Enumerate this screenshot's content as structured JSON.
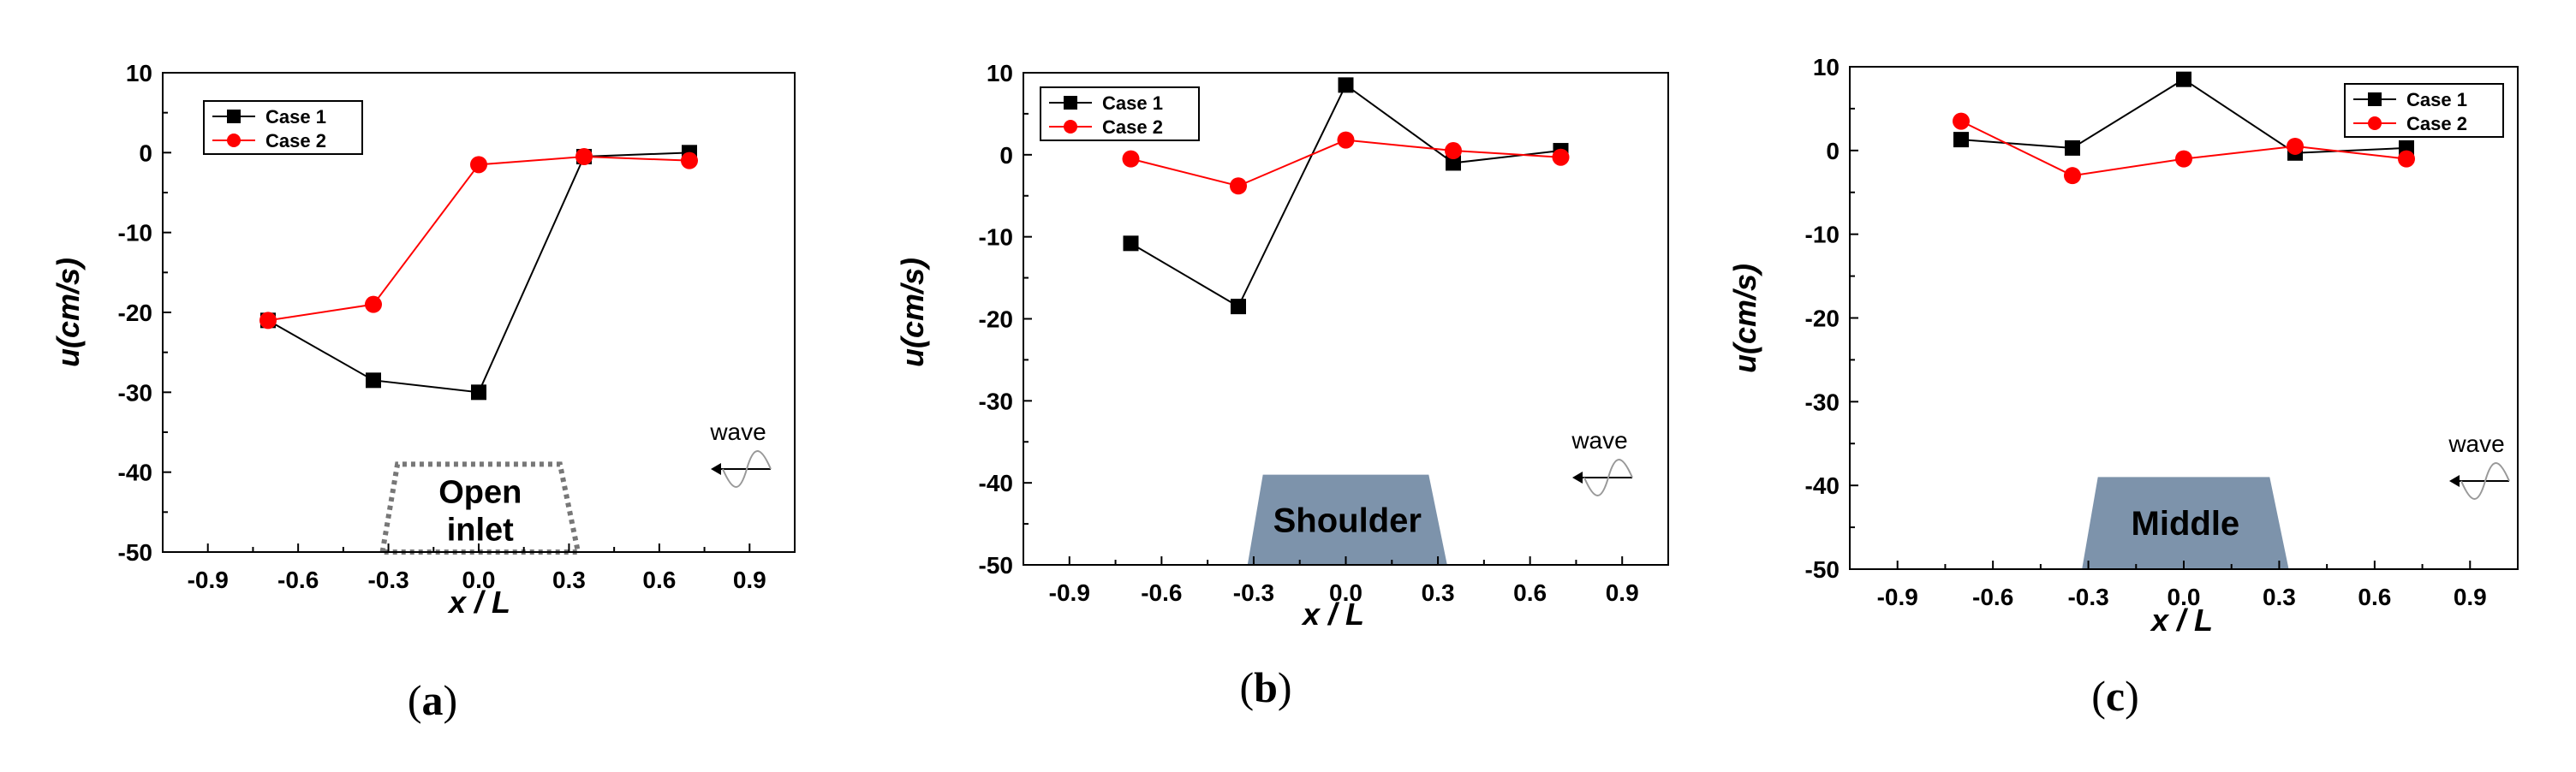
{
  "chart_data": [
    {
      "type": "line",
      "panel_label": "(a)",
      "xlabel": "x / L",
      "ylabel": "u(cm/s)",
      "xlim": [
        -1.05,
        1.05
      ],
      "ylim": [
        -50,
        10
      ],
      "xticks": [
        -0.9,
        -0.6,
        -0.3,
        0.0,
        0.3,
        0.6,
        0.9
      ],
      "xtick_labels": [
        "-0.9",
        "-0.6",
        "-0.3",
        "0.0",
        "0.3",
        "0.6",
        "0.9"
      ],
      "yticks": [
        10,
        0,
        -10,
        -20,
        -30,
        -40,
        -50
      ],
      "ytick_labels": [
        "10",
        "0",
        "-10",
        "-20",
        "-30",
        "-40",
        "-50"
      ],
      "grid": false,
      "legend_position": "top-left",
      "x": [
        -0.7,
        -0.35,
        0.0,
        0.35,
        0.7
      ],
      "series": [
        {
          "name": "Case 1",
          "values": [
            -21.0,
            -28.5,
            -30.0,
            -0.5,
            0.0
          ],
          "color": "#000000",
          "marker": "square"
        },
        {
          "name": "Case 2",
          "values": [
            -21.0,
            -19.0,
            -1.5,
            -0.5,
            -1.0
          ],
          "color": "#ff0000",
          "marker": "circle"
        }
      ],
      "structure": {
        "label": "Open inlet",
        "style": "dotted-outline"
      },
      "annotation": "wave"
    },
    {
      "type": "line",
      "panel_label": "(b)",
      "xlabel": "x / L",
      "ylabel": "u(cm/s)",
      "xlim": [
        -1.05,
        1.05
      ],
      "ylim": [
        -50,
        10
      ],
      "xticks": [
        -0.9,
        -0.6,
        -0.3,
        0.0,
        0.3,
        0.6,
        0.9
      ],
      "xtick_labels": [
        "-0.9",
        "-0.6",
        "-0.3",
        "0.0",
        "0.3",
        "0.6",
        "0.9"
      ],
      "yticks": [
        10,
        0,
        -10,
        -20,
        -30,
        -40,
        -50
      ],
      "ytick_labels": [
        "10",
        "0",
        "-10",
        "-20",
        "-30",
        "-40",
        "-50"
      ],
      "grid": false,
      "legend_position": "top-left",
      "x": [
        -0.7,
        -0.35,
        0.0,
        0.35,
        0.7
      ],
      "series": [
        {
          "name": "Case 1",
          "values": [
            -10.8,
            -18.5,
            8.5,
            -1.0,
            0.5
          ],
          "color": "#000000",
          "marker": "square"
        },
        {
          "name": "Case 2",
          "values": [
            -0.5,
            -3.8,
            1.8,
            0.5,
            -0.3
          ],
          "color": "#ff0000",
          "marker": "circle"
        }
      ],
      "structure": {
        "label": "Shoulder",
        "style": "filled"
      },
      "annotation": "wave"
    },
    {
      "type": "line",
      "panel_label": "(c)",
      "xlabel": "x / L",
      "ylabel": "u(cm/s)",
      "xlim": [
        -1.05,
        1.05
      ],
      "ylim": [
        -50,
        10
      ],
      "xticks": [
        -0.9,
        -0.6,
        -0.3,
        0.0,
        0.3,
        0.6,
        0.9
      ],
      "xtick_labels": [
        "-0.9",
        "-0.6",
        "-0.3",
        "0.0",
        "0.3",
        "0.6",
        "0.9"
      ],
      "yticks": [
        10,
        0,
        -10,
        -20,
        -30,
        -40,
        -50
      ],
      "ytick_labels": [
        "10",
        "0",
        "-10",
        "-20",
        "-30",
        "-40",
        "-50"
      ],
      "grid": false,
      "legend_position": "top-right",
      "x": [
        -0.7,
        -0.35,
        0.0,
        0.35,
        0.7
      ],
      "series": [
        {
          "name": "Case 1",
          "values": [
            1.3,
            0.3,
            8.5,
            -0.3,
            0.3
          ],
          "color": "#000000",
          "marker": "square"
        },
        {
          "name": "Case 2",
          "values": [
            3.5,
            -3.0,
            -1.0,
            0.5,
            -1.0
          ],
          "color": "#ff0000",
          "marker": "circle"
        }
      ],
      "structure": {
        "label": "Middle",
        "style": "filled"
      },
      "annotation": "wave"
    }
  ],
  "colors": {
    "structure_fill": "#7d93ab",
    "case1": "#000000",
    "case2": "#ff0000",
    "wave_symbol": "#999999"
  }
}
